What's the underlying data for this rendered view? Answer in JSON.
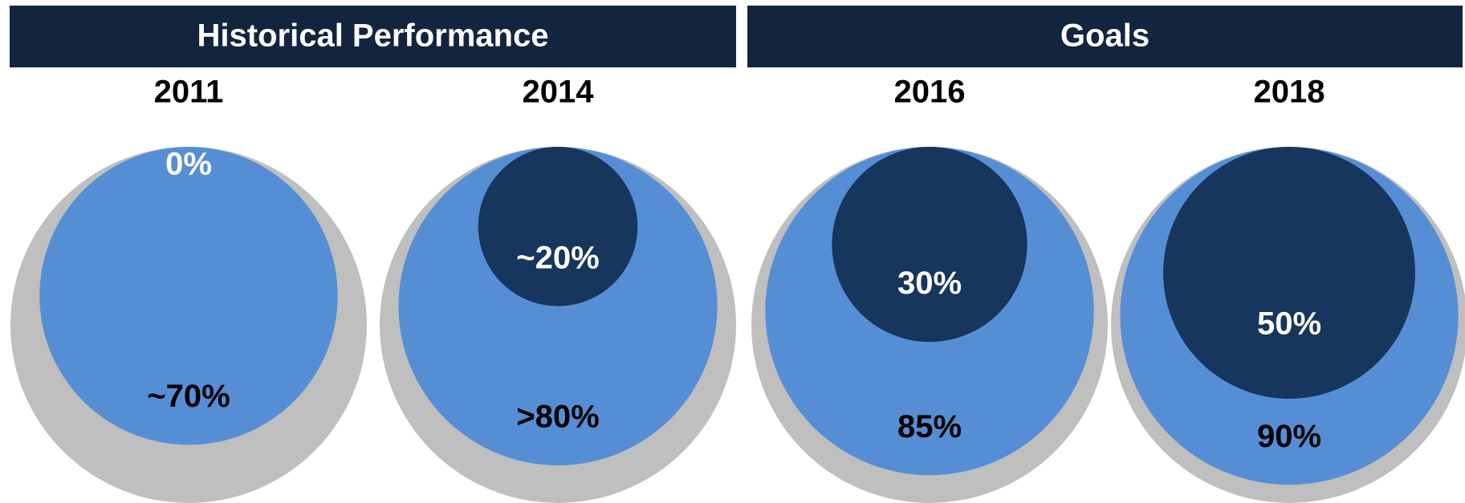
{
  "chart_data": {
    "type": "nested-circles",
    "headers": [
      "Historical Performance",
      "Goals"
    ],
    "header_color": "#13243f",
    "outer_color": "#bfbfbf",
    "categories": [
      "2011",
      "2014",
      "2016",
      "2018"
    ],
    "series": [
      {
        "color": "#558ed5",
        "label_color": "#000000",
        "values": [
          70,
          80,
          85,
          90
        ],
        "value_labels": [
          "~70%",
          ">80%",
          "85%",
          "90%"
        ]
      },
      {
        "color": "#17365d",
        "label_color": "#ffffff",
        "values": [
          0,
          20,
          30,
          50
        ],
        "value_labels": [
          "0%",
          "~20%",
          "30%",
          "50%"
        ]
      }
    ]
  }
}
